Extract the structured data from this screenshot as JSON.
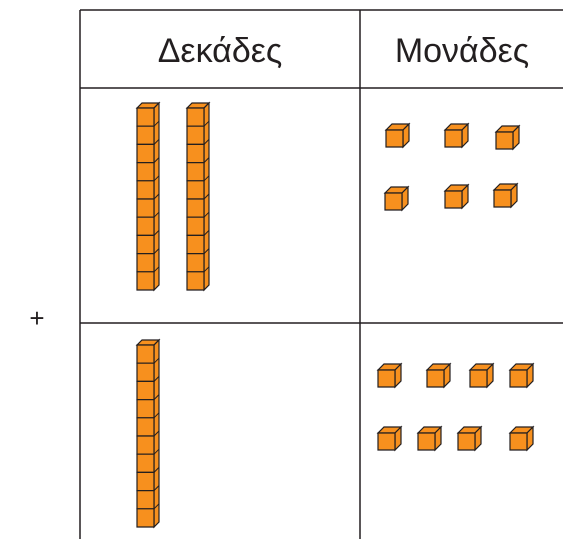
{
  "table": {
    "headers": [
      "Δεκάδες",
      "Μονάδες"
    ],
    "operator": "+"
  }
}
